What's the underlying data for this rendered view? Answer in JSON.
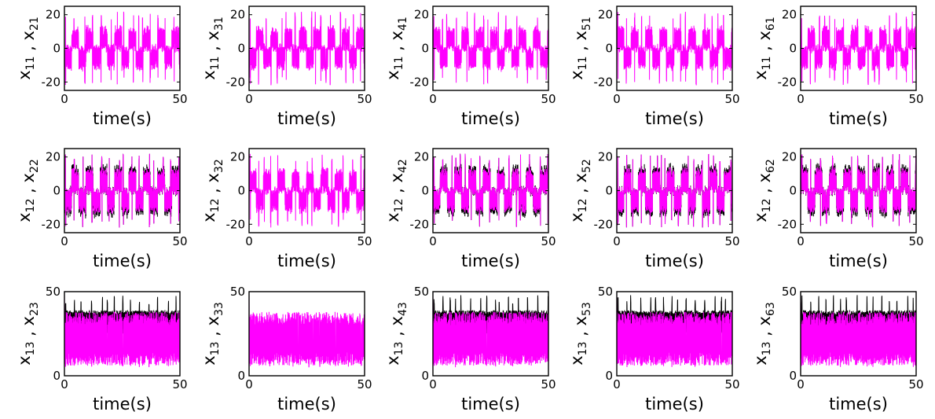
{
  "figure": {
    "background": "#ffffff",
    "colors": {
      "follower": "#ff00ff",
      "leader": "#000000",
      "axes": "#000000"
    }
  },
  "chart_data": [
    {
      "type": "line",
      "row": 0,
      "col": 0,
      "ylabel_base": "x",
      "ylabel_sub_left": "11",
      "ylabel_sep": " , ",
      "ylabel_sub_right": "21",
      "xlabel": "time(s)",
      "xlim": [
        0,
        50
      ],
      "ylim": [
        -25,
        25
      ],
      "xticks": [
        0,
        50
      ],
      "yticks": [
        -20,
        0,
        20
      ],
      "xtick_labels": [
        "0",
        "50"
      ],
      "ytick_labels": [
        "-20",
        "0",
        "20"
      ],
      "series": [
        {
          "color": "#000000"
        },
        {
          "color": "#ff00ff"
        }
      ],
      "leader_visible": false
    },
    {
      "type": "line",
      "row": 0,
      "col": 1,
      "ylabel_base": "x",
      "ylabel_sub_left": "11",
      "ylabel_sep": " , ",
      "ylabel_sub_right": "31",
      "xlabel": "time(s)",
      "xlim": [
        0,
        50
      ],
      "ylim": [
        -25,
        25
      ],
      "xticks": [
        0,
        50
      ],
      "yticks": [
        -20,
        0,
        20
      ],
      "xtick_labels": [
        "0",
        "50"
      ],
      "ytick_labels": [
        "-20",
        "0",
        "20"
      ],
      "series": [
        {
          "color": "#000000"
        },
        {
          "color": "#ff00ff"
        }
      ],
      "leader_visible": false
    },
    {
      "type": "line",
      "row": 0,
      "col": 2,
      "ylabel_base": "x",
      "ylabel_sub_left": "11",
      "ylabel_sep": " , ",
      "ylabel_sub_right": "41",
      "xlabel": "time(s)",
      "xlim": [
        0,
        50
      ],
      "ylim": [
        -25,
        25
      ],
      "xticks": [
        0,
        50
      ],
      "yticks": [
        -20,
        0,
        20
      ],
      "xtick_labels": [
        "0",
        "50"
      ],
      "ytick_labels": [
        "-20",
        "0",
        "20"
      ],
      "series": [
        {
          "color": "#000000"
        },
        {
          "color": "#ff00ff"
        }
      ],
      "leader_visible": false
    },
    {
      "type": "line",
      "row": 0,
      "col": 3,
      "ylabel_base": "x",
      "ylabel_sub_left": "11",
      "ylabel_sep": " , ",
      "ylabel_sub_right": "51",
      "xlabel": "time(s)",
      "xlim": [
        0,
        50
      ],
      "ylim": [
        -25,
        25
      ],
      "xticks": [
        0,
        50
      ],
      "yticks": [
        -20,
        0,
        20
      ],
      "xtick_labels": [
        "0",
        "50"
      ],
      "ytick_labels": [
        "-20",
        "0",
        "20"
      ],
      "series": [
        {
          "color": "#000000"
        },
        {
          "color": "#ff00ff"
        }
      ],
      "leader_visible": false
    },
    {
      "type": "line",
      "row": 0,
      "col": 4,
      "ylabel_base": "x",
      "ylabel_sub_left": "11",
      "ylabel_sep": " , ",
      "ylabel_sub_right": "61",
      "xlabel": "time(s)",
      "xlim": [
        0,
        50
      ],
      "ylim": [
        -25,
        25
      ],
      "xticks": [
        0,
        50
      ],
      "yticks": [
        -20,
        0,
        20
      ],
      "xtick_labels": [
        "0",
        "50"
      ],
      "ytick_labels": [
        "-20",
        "0",
        "20"
      ],
      "series": [
        {
          "color": "#000000"
        },
        {
          "color": "#ff00ff"
        }
      ],
      "leader_visible": false
    },
    {
      "type": "line",
      "row": 1,
      "col": 0,
      "ylabel_base": "x",
      "ylabel_sub_left": "12",
      "ylabel_sep": " , ",
      "ylabel_sub_right": "22",
      "xlabel": "time(s)",
      "xlim": [
        0,
        50
      ],
      "ylim": [
        -25,
        25
      ],
      "xticks": [
        0,
        50
      ],
      "yticks": [
        -20,
        0,
        20
      ],
      "xtick_labels": [
        "0",
        "50"
      ],
      "ytick_labels": [
        "-20",
        "0",
        "20"
      ],
      "series": [
        {
          "color": "#000000"
        },
        {
          "color": "#ff00ff"
        }
      ],
      "leader_visible": true
    },
    {
      "type": "line",
      "row": 1,
      "col": 1,
      "ylabel_base": "x",
      "ylabel_sub_left": "12",
      "ylabel_sep": " , ",
      "ylabel_sub_right": "32",
      "xlabel": "time(s)",
      "xlim": [
        0,
        50
      ],
      "ylim": [
        -25,
        25
      ],
      "xticks": [
        0,
        50
      ],
      "yticks": [
        -20,
        0,
        20
      ],
      "xtick_labels": [
        "0",
        "50"
      ],
      "ytick_labels": [
        "-20",
        "0",
        "20"
      ],
      "series": [
        {
          "color": "#000000"
        },
        {
          "color": "#ff00ff"
        }
      ],
      "leader_visible": false
    },
    {
      "type": "line",
      "row": 1,
      "col": 2,
      "ylabel_base": "x",
      "ylabel_sub_left": "12",
      "ylabel_sep": " , ",
      "ylabel_sub_right": "42",
      "xlabel": "time(s)",
      "xlim": [
        0,
        50
      ],
      "ylim": [
        -25,
        25
      ],
      "xticks": [
        0,
        50
      ],
      "yticks": [
        -20,
        0,
        20
      ],
      "xtick_labels": [
        "0",
        "50"
      ],
      "ytick_labels": [
        "-20",
        "0",
        "20"
      ],
      "series": [
        {
          "color": "#000000"
        },
        {
          "color": "#ff00ff"
        }
      ],
      "leader_visible": true
    },
    {
      "type": "line",
      "row": 1,
      "col": 3,
      "ylabel_base": "x",
      "ylabel_sub_left": "12",
      "ylabel_sep": " , ",
      "ylabel_sub_right": "52",
      "xlabel": "time(s)",
      "xlim": [
        0,
        50
      ],
      "ylim": [
        -25,
        25
      ],
      "xticks": [
        0,
        50
      ],
      "yticks": [
        -20,
        0,
        20
      ],
      "xtick_labels": [
        "0",
        "50"
      ],
      "ytick_labels": [
        "-20",
        "0",
        "20"
      ],
      "series": [
        {
          "color": "#000000"
        },
        {
          "color": "#ff00ff"
        }
      ],
      "leader_visible": true
    },
    {
      "type": "line",
      "row": 1,
      "col": 4,
      "ylabel_base": "x",
      "ylabel_sub_left": "12",
      "ylabel_sep": " , ",
      "ylabel_sub_right": "62",
      "xlabel": "time(s)",
      "xlim": [
        0,
        50
      ],
      "ylim": [
        -25,
        25
      ],
      "xticks": [
        0,
        50
      ],
      "yticks": [
        -20,
        0,
        20
      ],
      "xtick_labels": [
        "0",
        "50"
      ],
      "ytick_labels": [
        "-20",
        "0",
        "20"
      ],
      "series": [
        {
          "color": "#000000"
        },
        {
          "color": "#ff00ff"
        }
      ],
      "leader_visible": true
    },
    {
      "type": "line",
      "row": 2,
      "col": 0,
      "ylabel_base": "x",
      "ylabel_sub_left": "13",
      "ylabel_sep": " , ",
      "ylabel_sub_right": "23",
      "xlabel": "time(s)",
      "xlim": [
        0,
        50
      ],
      "ylim": [
        0,
        50
      ],
      "xticks": [
        0,
        50
      ],
      "yticks": [
        0,
        50
      ],
      "xtick_labels": [
        "0",
        "50"
      ],
      "ytick_labels": [
        "0",
        "50"
      ],
      "series": [
        {
          "color": "#000000"
        },
        {
          "color": "#ff00ff"
        }
      ],
      "leader_visible": true
    },
    {
      "type": "line",
      "row": 2,
      "col": 1,
      "ylabel_base": "x",
      "ylabel_sub_left": "13",
      "ylabel_sep": " , ",
      "ylabel_sub_right": "33",
      "xlabel": "time(s)",
      "xlim": [
        0,
        50
      ],
      "ylim": [
        0,
        50
      ],
      "xticks": [
        0,
        50
      ],
      "yticks": [
        0,
        50
      ],
      "xtick_labels": [
        "0",
        "50"
      ],
      "ytick_labels": [
        "0",
        "50"
      ],
      "series": [
        {
          "color": "#000000"
        },
        {
          "color": "#ff00ff"
        }
      ],
      "leader_visible": false
    },
    {
      "type": "line",
      "row": 2,
      "col": 2,
      "ylabel_base": "x",
      "ylabel_sub_left": "13",
      "ylabel_sep": " , ",
      "ylabel_sub_right": "43",
      "xlabel": "time(s)",
      "xlim": [
        0,
        50
      ],
      "ylim": [
        0,
        50
      ],
      "xticks": [
        0,
        50
      ],
      "yticks": [
        0,
        50
      ],
      "xtick_labels": [
        "0",
        "50"
      ],
      "ytick_labels": [
        "0",
        "50"
      ],
      "series": [
        {
          "color": "#000000"
        },
        {
          "color": "#ff00ff"
        }
      ],
      "leader_visible": true
    },
    {
      "type": "line",
      "row": 2,
      "col": 3,
      "ylabel_base": "x",
      "ylabel_sub_left": "13",
      "ylabel_sep": " , ",
      "ylabel_sub_right": "53",
      "xlabel": "time(s)",
      "xlim": [
        0,
        50
      ],
      "ylim": [
        0,
        50
      ],
      "xticks": [
        0,
        50
      ],
      "yticks": [
        0,
        50
      ],
      "xtick_labels": [
        "0",
        "50"
      ],
      "ytick_labels": [
        "0",
        "50"
      ],
      "series": [
        {
          "color": "#000000"
        },
        {
          "color": "#ff00ff"
        }
      ],
      "leader_visible": true
    },
    {
      "type": "line",
      "row": 2,
      "col": 4,
      "ylabel_base": "x",
      "ylabel_sub_left": "13",
      "ylabel_sep": " , ",
      "ylabel_sub_right": "63",
      "xlabel": "time(s)",
      "xlim": [
        0,
        50
      ],
      "ylim": [
        0,
        50
      ],
      "xticks": [
        0,
        50
      ],
      "yticks": [
        0,
        50
      ],
      "xtick_labels": [
        "0",
        "50"
      ],
      "ytick_labels": [
        "0",
        "50"
      ],
      "series": [
        {
          "color": "#000000"
        },
        {
          "color": "#ff00ff"
        }
      ],
      "leader_visible": true
    }
  ]
}
